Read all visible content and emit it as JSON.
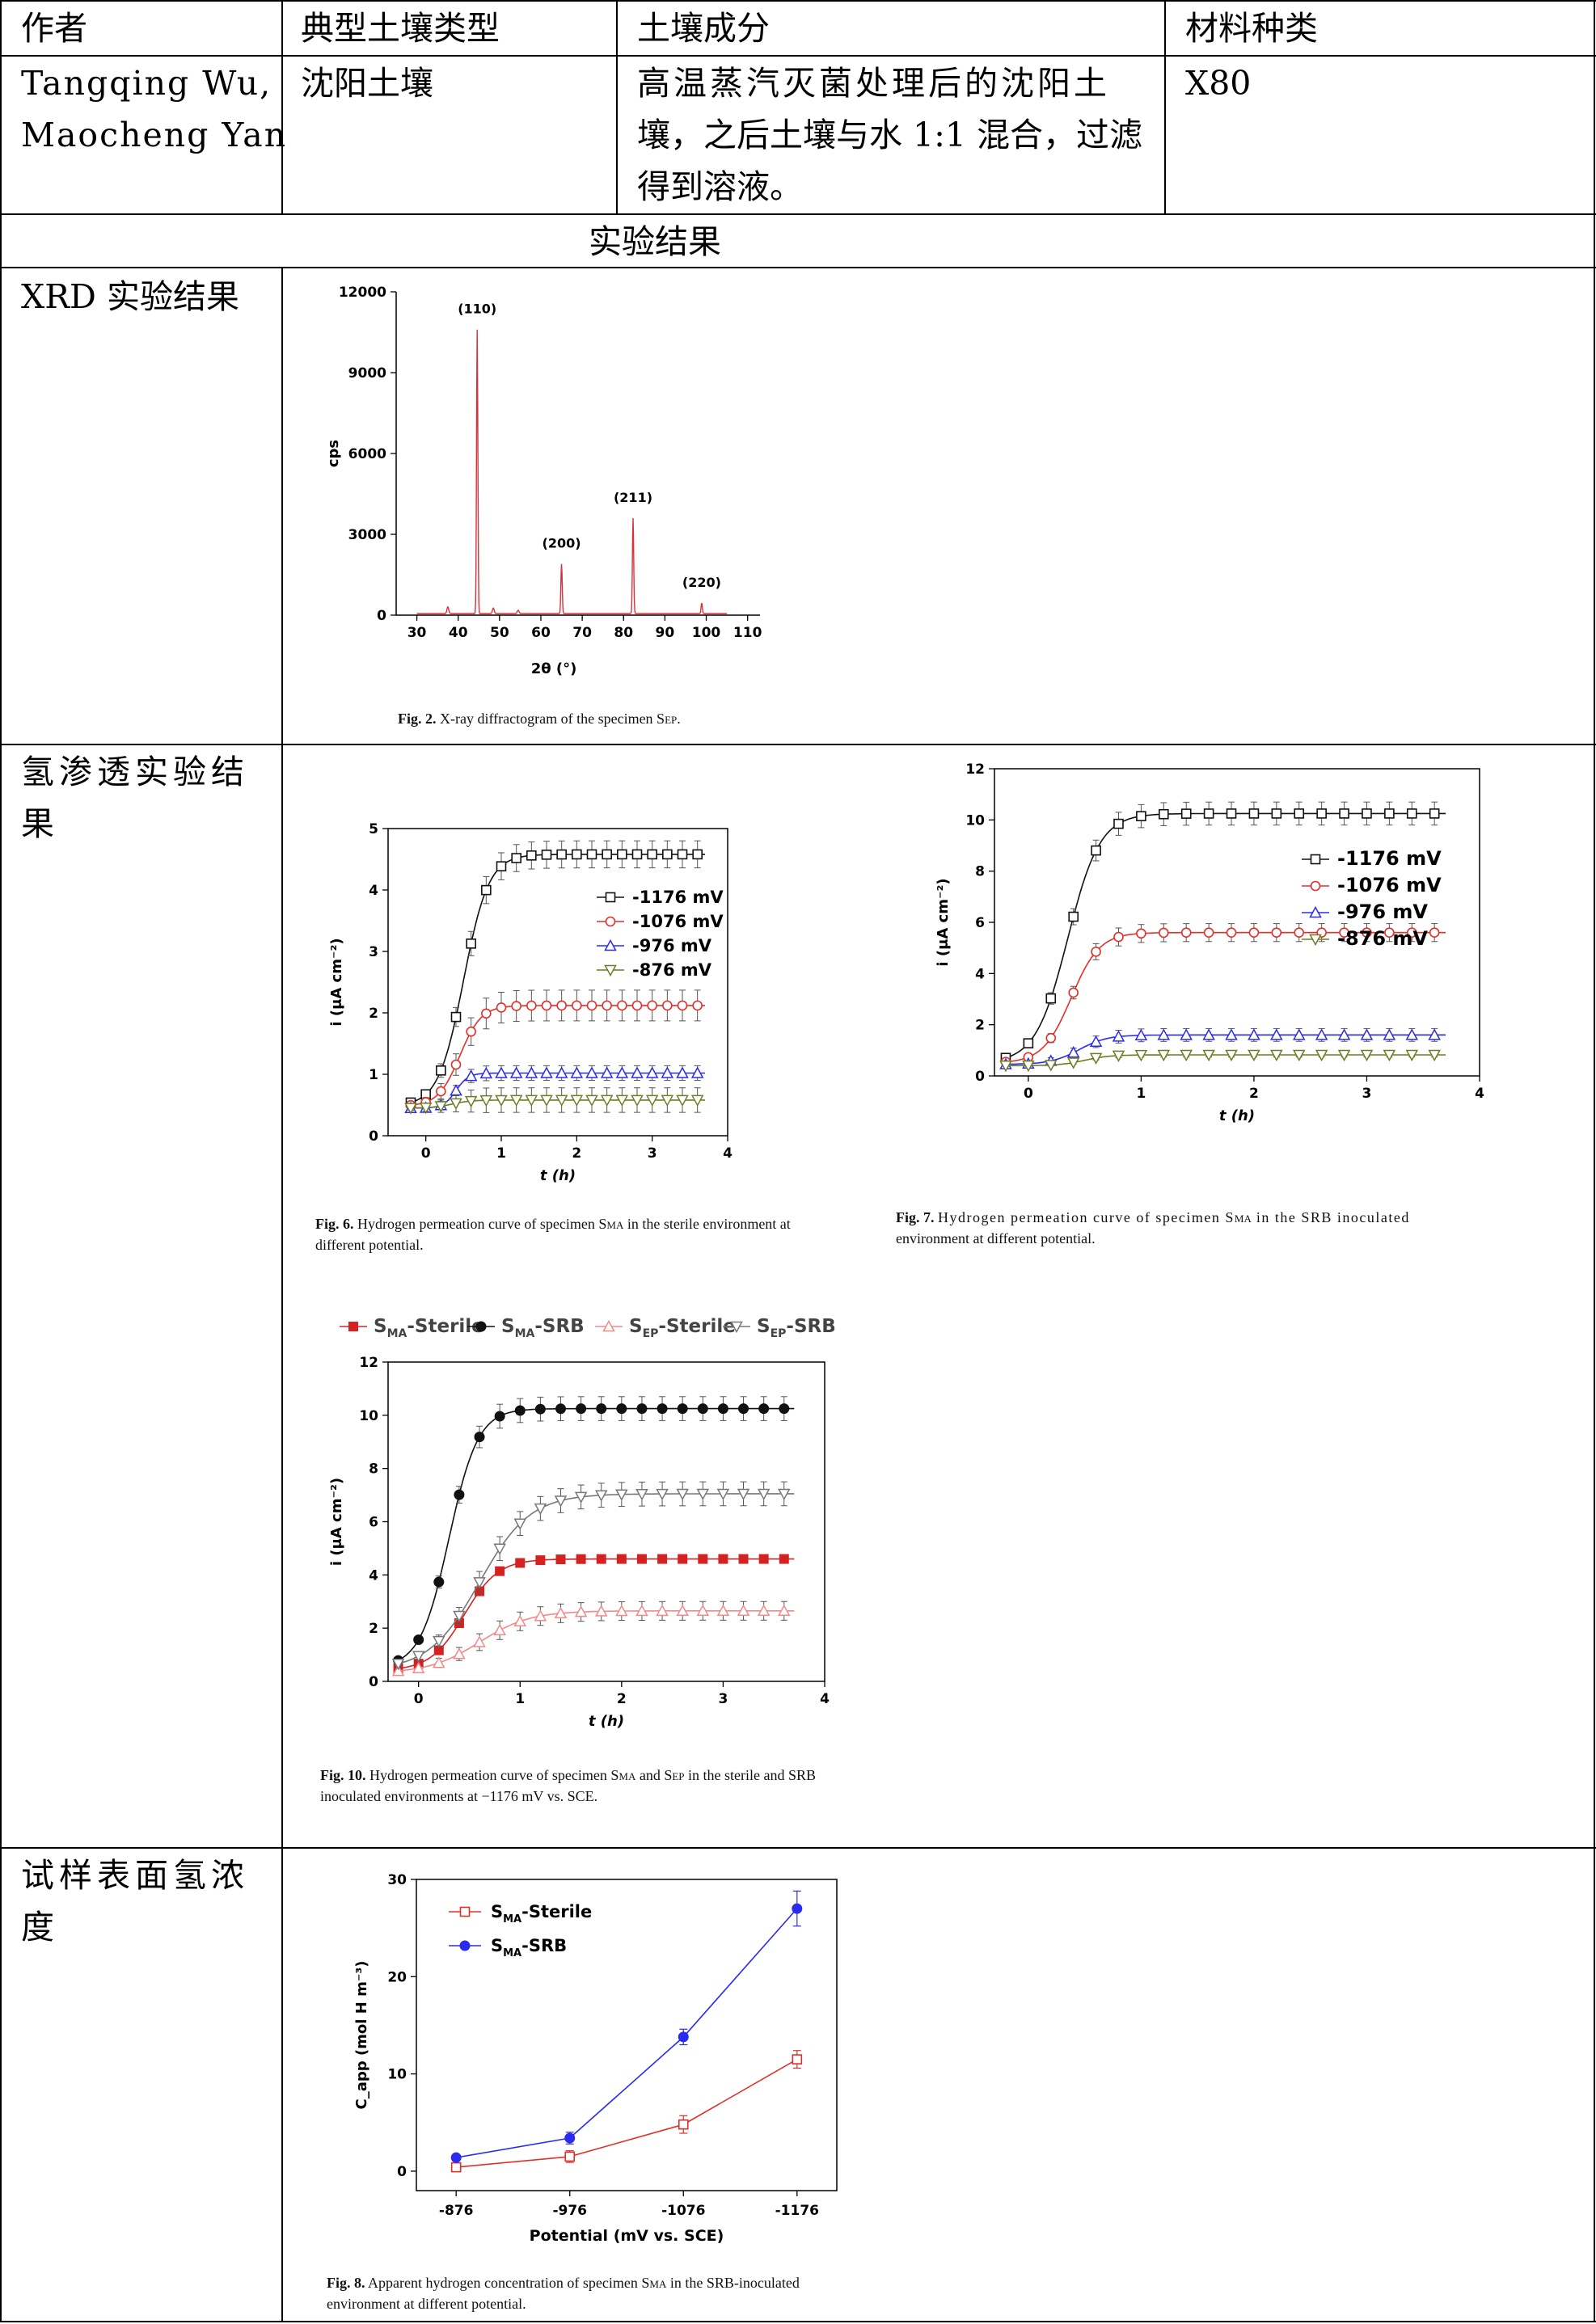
{
  "table": {
    "header": {
      "author": "作者",
      "soil_type": "典型土壤类型",
      "soil_composition": "土壤成分",
      "material": "材料种类"
    },
    "row": {
      "author_line1": "Tangqing Wu,",
      "author_line2": "Maocheng Yan",
      "soil_type": "沈阳土壤",
      "composition_line1": "高温蒸汽灭菌处理后的沈阳土",
      "composition_line2": "壤，之后土壤与水 1:1 混合，过滤",
      "composition_line3": "得到溶液。",
      "material": "X80"
    },
    "section_title": "实验结果",
    "row_labels": {
      "xrd": "XRD 实验结果",
      "hp_line1": "氢渗透实验结",
      "hp_line2": "果",
      "conc_line1": "试样表面氢浓",
      "conc_line2": "度"
    }
  },
  "captions": {
    "fig2": {
      "label": "Fig. 2.",
      "text": "X-ray diffractogram of the specimen S",
      "sub": "EP",
      "tail": "."
    },
    "fig6": {
      "label": "Fig. 6.",
      "line1": "Hydrogen permeation curve of specimen S",
      "sub": "MA",
      "line1_tail": " in the sterile environment at",
      "line2": "different potential."
    },
    "fig7": {
      "label": "Fig. 7.",
      "line1": "Hydrogen permeation curve of specimen S",
      "sub": "MA",
      "line1_tail": " in the SRB inoculated",
      "line2": "environment at different potential."
    },
    "fig10": {
      "label": "Fig. 10.",
      "line1a": "Hydrogen permeation curve of specimen S",
      "sub1": "MA",
      "line1b": " and S",
      "sub2": "EP",
      "line1c": " in the sterile and SRB",
      "line2": "inoculated environments at −1176 mV vs. SCE."
    },
    "fig8": {
      "label": "Fig. 8.",
      "line1": "Apparent hydrogen concentration of specimen S",
      "sub": "MA",
      "line1_tail": " in the SRB-inoculated",
      "line2": "environment at different potential."
    }
  },
  "colors": {
    "xrd": "#d9313a",
    "black": "#111111",
    "red": "#e0302b",
    "blue": "#2b2bf0",
    "olive": "#6b7d22",
    "pink": "#f08a8a",
    "gray": "#777777",
    "red_fill": "#d42222"
  },
  "chart_data": [
    {
      "id": "fig2",
      "type": "line",
      "xlabel": "2θ (°)",
      "ylabel": "cps",
      "xlim": [
        25,
        113
      ],
      "ylim": [
        0,
        12000
      ],
      "xticks": [
        30,
        40,
        50,
        60,
        70,
        80,
        90,
        100,
        110
      ],
      "yticks": [
        0,
        3000,
        6000,
        9000,
        12000
      ],
      "peaks": [
        {
          "x": 44.6,
          "y": 10600,
          "label": "(110)"
        },
        {
          "x": 65.0,
          "y": 1900,
          "label": "(200)"
        },
        {
          "x": 82.3,
          "y": 3600,
          "label": "(211)"
        },
        {
          "x": 98.9,
          "y": 450,
          "label": "(220)"
        }
      ],
      "baseline": 60
    },
    {
      "id": "fig6",
      "type": "line",
      "xlabel": "t (h)",
      "ylabel": "i (μA cm⁻²)",
      "xlim": [
        -0.5,
        4
      ],
      "ylim": [
        0,
        5
      ],
      "xticks": [
        0,
        1,
        2,
        3,
        4
      ],
      "yticks": [
        0,
        1,
        2,
        3,
        4,
        5
      ],
      "series": [
        {
          "name": "-1176 mV",
          "marker": "square",
          "color": "#111111",
          "plateau": 4.58,
          "base": 0.48,
          "mid": 0.5,
          "k": 6,
          "err": 0.22
        },
        {
          "name": "-1076 mV",
          "marker": "circle",
          "color": "#e0302b",
          "plateau": 2.12,
          "base": 0.48,
          "mid": 0.45,
          "k": 7,
          "err": 0.25
        },
        {
          "name": "-976 mV",
          "marker": "triangle",
          "color": "#2b2bf0",
          "plateau": 1.02,
          "base": 0.45,
          "mid": 0.4,
          "k": 12,
          "err": 0.12
        },
        {
          "name": "-876 mV",
          "marker": "triangle-down",
          "color": "#6b7d22",
          "plateau": 0.58,
          "base": 0.45,
          "mid": 0.35,
          "k": 8,
          "err": 0.2
        }
      ]
    },
    {
      "id": "fig7",
      "type": "line",
      "xlabel": "t (h)",
      "ylabel": "i (μA cm⁻²)",
      "xlim": [
        -0.3,
        4
      ],
      "ylim": [
        0,
        12
      ],
      "xticks": [
        0,
        1,
        2,
        3,
        4
      ],
      "yticks": [
        0,
        2,
        4,
        6,
        8,
        10,
        12
      ],
      "series": [
        {
          "name": "-1176 mV",
          "marker": "square",
          "color": "#111111",
          "plateau": 10.25,
          "base": 0.5,
          "mid": 0.35,
          "k": 7,
          "err": 0.45
        },
        {
          "name": "-1076 mV",
          "marker": "circle",
          "color": "#e0302b",
          "plateau": 5.6,
          "base": 0.5,
          "mid": 0.38,
          "k": 8,
          "err": 0.35
        },
        {
          "name": "-976 mV",
          "marker": "triangle",
          "color": "#2b2bf0",
          "plateau": 1.6,
          "base": 0.45,
          "mid": 0.45,
          "k": 8,
          "err": 0.25
        },
        {
          "name": "-876 mV",
          "marker": "triangle-down",
          "color": "#6b7d22",
          "plateau": 0.82,
          "base": 0.4,
          "mid": 0.5,
          "k": 9,
          "err": 0.08
        }
      ]
    },
    {
      "id": "fig10",
      "type": "line",
      "xlabel": "t (h)",
      "ylabel": "i (μA cm⁻²)",
      "xlim": [
        -0.3,
        4
      ],
      "ylim": [
        0,
        12
      ],
      "xticks": [
        0,
        1,
        2,
        3,
        4
      ],
      "yticks": [
        0,
        2,
        4,
        6,
        8,
        10,
        12
      ],
      "series": [
        {
          "name": "S_MA-Sterile",
          "legend_main": "S",
          "legend_sub": "MA",
          "legend_tail": "-Sterile",
          "marker": "square-filled",
          "color": "#d42222",
          "plateau": 4.6,
          "base": 0.4,
          "mid": 0.45,
          "k": 6,
          "err": 0.15
        },
        {
          "name": "S_MA-SRB",
          "legend_main": "S",
          "legend_sub": "MA",
          "legend_tail": "-SRB",
          "marker": "circle-filled",
          "color": "#111111",
          "plateau": 10.25,
          "base": 0.5,
          "mid": 0.3,
          "k": 7,
          "err": 0.45
        },
        {
          "name": "S_EP-Sterile",
          "legend_main": "S",
          "legend_sub": "EP",
          "legend_tail": "-Sterile",
          "marker": "triangle",
          "color": "#f08a8a",
          "plateau": 2.65,
          "base": 0.3,
          "mid": 0.6,
          "k": 4,
          "err": 0.35
        },
        {
          "name": "S_EP-SRB",
          "legend_main": "S",
          "legend_sub": "EP",
          "legend_tail": "-SRB",
          "marker": "triangle-down",
          "color": "#777777",
          "plateau": 7.05,
          "base": 0.4,
          "mid": 0.6,
          "k": 4,
          "err": 0.45
        }
      ]
    },
    {
      "id": "fig8",
      "type": "line",
      "xlabel": "Potential (mV vs. SCE)",
      "ylabel": "C_app (mol H m⁻³)",
      "categories": [
        "-876",
        "-976",
        "-1076",
        "-1176"
      ],
      "ylim": [
        -2,
        30
      ],
      "yticks": [
        0,
        10,
        20,
        30
      ],
      "series": [
        {
          "name": "S_MA-Sterile",
          "legend_main": "S",
          "legend_sub": "MA",
          "legend_tail": "-Sterile",
          "marker": "square",
          "color": "#e0302b",
          "values": [
            0.4,
            1.5,
            4.8,
            11.5
          ],
          "errors": [
            0.4,
            0.6,
            0.9,
            0.9
          ]
        },
        {
          "name": "S_MA-SRB",
          "legend_main": "S",
          "legend_sub": "MA",
          "legend_tail": "-SRB",
          "marker": "circle-filled",
          "color": "#2b2bf0",
          "values": [
            1.4,
            3.4,
            13.8,
            27.0
          ],
          "errors": [
            0.3,
            0.6,
            0.8,
            1.8
          ]
        }
      ]
    }
  ]
}
